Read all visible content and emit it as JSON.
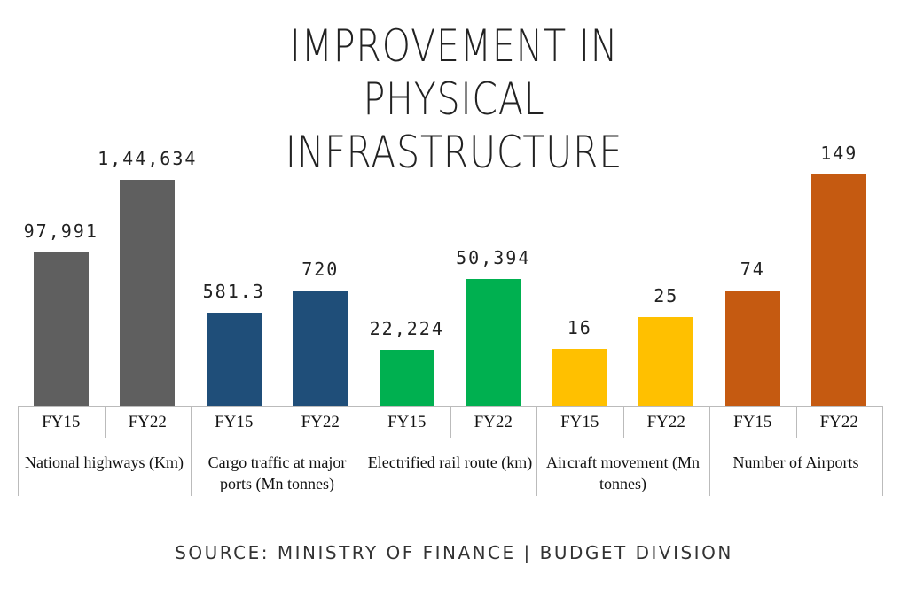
{
  "chart_data": {
    "type": "bar",
    "title": "IMPROVEMENT IN PHYSICAL INFRASTRUCTURE",
    "source": "SOURCE: MINISTRY OF FINANCE | BUDGET DIVISION",
    "groups": [
      {
        "name": "National highways (Km)",
        "color": "#5f5f5f",
        "categories": [
          "FY15",
          "FY22"
        ],
        "values": [
          97991,
          144634
        ],
        "value_labels": [
          "97,991",
          "1,44,634"
        ]
      },
      {
        "name": "Cargo traffic at major ports (Mn tonnes)",
        "color": "#1f4e79",
        "categories": [
          "FY15",
          "FY22"
        ],
        "values": [
          581.3,
          720
        ]
      },
      {
        "name": "Electrified rail route (km)",
        "color": "#00b050",
        "categories": [
          "FY15",
          "FY22"
        ],
        "values": [
          22224,
          50394
        ],
        "value_labels": [
          "22,224",
          "50,394"
        ]
      },
      {
        "name": "Aircraft movement (Mn tonnes)",
        "color": "#ffc000",
        "categories": [
          "FY15",
          "FY22"
        ],
        "values": [
          16,
          25
        ]
      },
      {
        "name": "Number of Airports",
        "color": "#c55a11",
        "categories": [
          "FY15",
          "FY22"
        ],
        "values": [
          74,
          149
        ]
      }
    ]
  }
}
